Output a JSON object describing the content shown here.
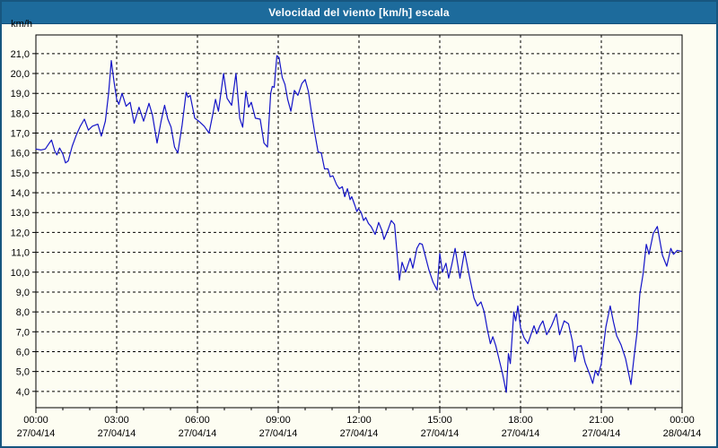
{
  "window": {
    "title": "Velocidad del viento [km/h] escala",
    "colors": {
      "title_bar": "#1d6b9c",
      "window_border": "#17567f",
      "content_bg": "#fdfdf2",
      "grid": "#000000",
      "axis_text": "#000000",
      "line": "#1414c8"
    }
  },
  "chart_data": {
    "type": "line",
    "title": "Velocidad del viento [km/h] escala",
    "ylabel": "km/h",
    "legend_position": "none",
    "grid": "dashed",
    "ylim": [
      3.18,
      21.94
    ],
    "xlim_hours": [
      0,
      24
    ],
    "y_ticks": [
      {
        "v": 21,
        "label": "21,0"
      },
      {
        "v": 20,
        "label": "20,0"
      },
      {
        "v": 19,
        "label": "19,0"
      },
      {
        "v": 18,
        "label": "18,0"
      },
      {
        "v": 17,
        "label": "17,0"
      },
      {
        "v": 16,
        "label": "16,0"
      },
      {
        "v": 15,
        "label": "15,0"
      },
      {
        "v": 14,
        "label": "14,0"
      },
      {
        "v": 13,
        "label": "13,0"
      },
      {
        "v": 12,
        "label": "12,0"
      },
      {
        "v": 11,
        "label": "11,0"
      },
      {
        "v": 10,
        "label": "10,0"
      },
      {
        "v": 9,
        "label": "9,0"
      },
      {
        "v": 8,
        "label": "8,0"
      },
      {
        "v": 7,
        "label": "7,0"
      },
      {
        "v": 6,
        "label": "6,0"
      },
      {
        "v": 5,
        "label": "5,0"
      },
      {
        "v": 4,
        "label": "4,0"
      }
    ],
    "x_ticks": [
      {
        "h": 0,
        "time": "00:00",
        "date": "27/04/14"
      },
      {
        "h": 3,
        "time": "03:00",
        "date": "27/04/14"
      },
      {
        "h": 6,
        "time": "06:00",
        "date": "27/04/14"
      },
      {
        "h": 9,
        "time": "09:00",
        "date": "27/04/14"
      },
      {
        "h": 12,
        "time": "12:00",
        "date": "27/04/14"
      },
      {
        "h": 15,
        "time": "15:00",
        "date": "27/04/14"
      },
      {
        "h": 18,
        "time": "18:00",
        "date": "27/04/14"
      },
      {
        "h": 21,
        "time": "21:00",
        "date": "27/04/14"
      },
      {
        "h": 24,
        "time": "00:00",
        "date": "28/04/14"
      }
    ],
    "minor_x_tick_every_hours": 1,
    "series": [
      {
        "name": "Velocidad del viento [km/h]",
        "color": "#1414c8",
        "points": [
          [
            0.0,
            16.2
          ],
          [
            0.18,
            16.15
          ],
          [
            0.35,
            16.2
          ],
          [
            0.5,
            16.5
          ],
          [
            0.58,
            16.65
          ],
          [
            0.7,
            16.1
          ],
          [
            0.78,
            15.9
          ],
          [
            0.88,
            16.25
          ],
          [
            1.0,
            15.95
          ],
          [
            1.1,
            15.5
          ],
          [
            1.2,
            15.6
          ],
          [
            1.35,
            16.35
          ],
          [
            1.5,
            16.9
          ],
          [
            1.65,
            17.35
          ],
          [
            1.8,
            17.7
          ],
          [
            1.95,
            17.15
          ],
          [
            2.1,
            17.35
          ],
          [
            2.2,
            17.4
          ],
          [
            2.3,
            17.45
          ],
          [
            2.43,
            16.85
          ],
          [
            2.58,
            17.6
          ],
          [
            2.7,
            19.0
          ],
          [
            2.8,
            20.65
          ],
          [
            2.9,
            19.6
          ],
          [
            3.0,
            18.7
          ],
          [
            3.08,
            18.45
          ],
          [
            3.2,
            19.0
          ],
          [
            3.35,
            18.35
          ],
          [
            3.5,
            18.55
          ],
          [
            3.65,
            17.5
          ],
          [
            3.83,
            18.3
          ],
          [
            4.0,
            17.6
          ],
          [
            4.2,
            18.5
          ],
          [
            4.33,
            17.9
          ],
          [
            4.5,
            16.5
          ],
          [
            4.65,
            17.6
          ],
          [
            4.78,
            18.4
          ],
          [
            4.9,
            17.7
          ],
          [
            5.02,
            17.3
          ],
          [
            5.15,
            16.3
          ],
          [
            5.27,
            16.0
          ],
          [
            5.43,
            17.4
          ],
          [
            5.58,
            19.05
          ],
          [
            5.65,
            18.8
          ],
          [
            5.73,
            18.9
          ],
          [
            5.9,
            17.75
          ],
          [
            6.05,
            17.6
          ],
          [
            6.25,
            17.35
          ],
          [
            6.43,
            17.0
          ],
          [
            6.57,
            17.95
          ],
          [
            6.67,
            18.7
          ],
          [
            6.78,
            18.1
          ],
          [
            6.97,
            20.0
          ],
          [
            7.1,
            18.75
          ],
          [
            7.27,
            18.4
          ],
          [
            7.43,
            20.0
          ],
          [
            7.57,
            17.75
          ],
          [
            7.68,
            17.3
          ],
          [
            7.8,
            19.1
          ],
          [
            7.9,
            18.3
          ],
          [
            8.0,
            18.55
          ],
          [
            8.15,
            17.75
          ],
          [
            8.33,
            17.7
          ],
          [
            8.47,
            16.5
          ],
          [
            8.6,
            16.3
          ],
          [
            8.72,
            19.0
          ],
          [
            8.78,
            19.35
          ],
          [
            8.85,
            19.3
          ],
          [
            8.95,
            20.9
          ],
          [
            9.03,
            20.8
          ],
          [
            9.15,
            19.8
          ],
          [
            9.25,
            19.45
          ],
          [
            9.35,
            18.7
          ],
          [
            9.47,
            18.1
          ],
          [
            9.6,
            19.15
          ],
          [
            9.73,
            18.9
          ],
          [
            9.88,
            19.5
          ],
          [
            10.0,
            19.7
          ],
          [
            10.12,
            19.1
          ],
          [
            10.25,
            17.9
          ],
          [
            10.37,
            16.9
          ],
          [
            10.48,
            16.05
          ],
          [
            10.6,
            16.0
          ],
          [
            10.72,
            15.2
          ],
          [
            10.85,
            15.2
          ],
          [
            10.93,
            14.8
          ],
          [
            11.03,
            14.85
          ],
          [
            11.17,
            14.4
          ],
          [
            11.27,
            14.2
          ],
          [
            11.38,
            14.3
          ],
          [
            11.47,
            13.8
          ],
          [
            11.57,
            14.2
          ],
          [
            11.67,
            13.65
          ],
          [
            11.73,
            13.8
          ],
          [
            11.85,
            13.35
          ],
          [
            11.92,
            13.05
          ],
          [
            11.98,
            13.2
          ],
          [
            12.08,
            13.0
          ],
          [
            12.17,
            12.6
          ],
          [
            12.25,
            12.75
          ],
          [
            12.35,
            12.45
          ],
          [
            12.45,
            12.3
          ],
          [
            12.6,
            11.9
          ],
          [
            12.73,
            12.5
          ],
          [
            12.85,
            12.1
          ],
          [
            12.93,
            11.65
          ],
          [
            13.08,
            12.15
          ],
          [
            13.2,
            12.6
          ],
          [
            13.32,
            12.4
          ],
          [
            13.5,
            9.6
          ],
          [
            13.6,
            10.5
          ],
          [
            13.73,
            10.0
          ],
          [
            13.9,
            10.7
          ],
          [
            14.0,
            10.2
          ],
          [
            14.15,
            11.2
          ],
          [
            14.25,
            11.45
          ],
          [
            14.35,
            11.4
          ],
          [
            14.6,
            10.1
          ],
          [
            14.75,
            9.5
          ],
          [
            14.9,
            9.1
          ],
          [
            15.0,
            10.95
          ],
          [
            15.1,
            10.0
          ],
          [
            15.23,
            10.45
          ],
          [
            15.33,
            9.7
          ],
          [
            15.45,
            10.4
          ],
          [
            15.57,
            11.2
          ],
          [
            15.75,
            9.7
          ],
          [
            15.92,
            11.05
          ],
          [
            16.1,
            9.8
          ],
          [
            16.27,
            8.7
          ],
          [
            16.4,
            8.3
          ],
          [
            16.53,
            8.5
          ],
          [
            16.65,
            8.0
          ],
          [
            16.77,
            7.1
          ],
          [
            16.88,
            6.4
          ],
          [
            16.97,
            6.75
          ],
          [
            17.08,
            6.3
          ],
          [
            17.17,
            5.8
          ],
          [
            17.33,
            4.9
          ],
          [
            17.47,
            3.95
          ],
          [
            17.55,
            5.9
          ],
          [
            17.62,
            5.4
          ],
          [
            17.75,
            8.0
          ],
          [
            17.82,
            7.55
          ],
          [
            17.9,
            8.3
          ],
          [
            18.0,
            7.2
          ],
          [
            18.13,
            6.7
          ],
          [
            18.27,
            6.4
          ],
          [
            18.5,
            7.3
          ],
          [
            18.6,
            6.9
          ],
          [
            18.72,
            7.3
          ],
          [
            18.83,
            7.55
          ],
          [
            18.97,
            6.85
          ],
          [
            19.15,
            7.3
          ],
          [
            19.33,
            7.9
          ],
          [
            19.45,
            6.85
          ],
          [
            19.62,
            7.55
          ],
          [
            19.78,
            7.4
          ],
          [
            19.93,
            6.5
          ],
          [
            20.02,
            5.5
          ],
          [
            20.12,
            6.25
          ],
          [
            20.25,
            6.3
          ],
          [
            20.4,
            5.45
          ],
          [
            20.57,
            4.85
          ],
          [
            20.68,
            4.4
          ],
          [
            20.78,
            5.05
          ],
          [
            20.88,
            4.8
          ],
          [
            21.0,
            5.4
          ],
          [
            21.17,
            7.25
          ],
          [
            21.33,
            8.3
          ],
          [
            21.45,
            7.5
          ],
          [
            21.57,
            6.8
          ],
          [
            21.73,
            6.35
          ],
          [
            21.9,
            5.65
          ],
          [
            22.0,
            5.0
          ],
          [
            22.1,
            4.35
          ],
          [
            22.23,
            5.9
          ],
          [
            22.33,
            7.0
          ],
          [
            22.43,
            8.9
          ],
          [
            22.55,
            9.9
          ],
          [
            22.67,
            11.4
          ],
          [
            22.77,
            10.9
          ],
          [
            22.93,
            11.95
          ],
          [
            23.08,
            12.3
          ],
          [
            23.27,
            10.85
          ],
          [
            23.43,
            10.3
          ],
          [
            23.58,
            11.2
          ],
          [
            23.68,
            10.9
          ],
          [
            23.82,
            11.1
          ],
          [
            23.97,
            11.05
          ]
        ]
      }
    ]
  }
}
